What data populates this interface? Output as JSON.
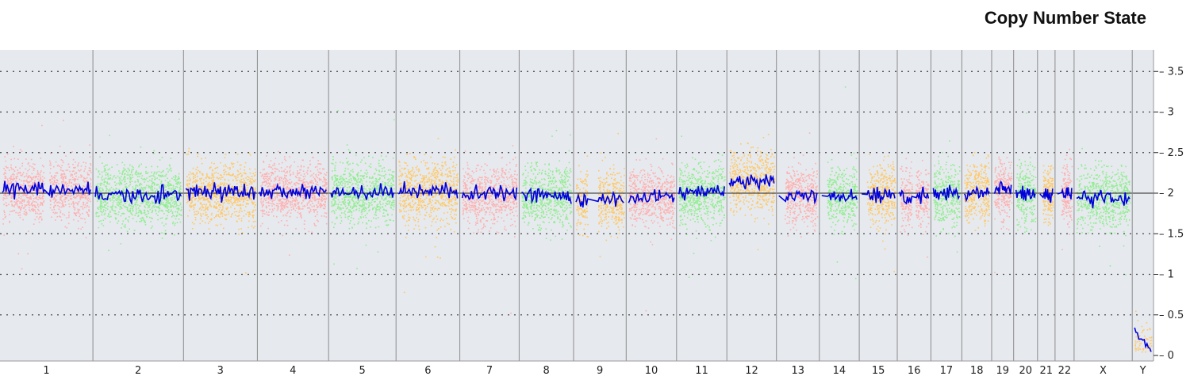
{
  "title": "Copy Number State",
  "chart_data": {
    "type": "scatter",
    "title": "Copy Number State",
    "xlabel": "",
    "ylabel": "",
    "ylim": [
      0,
      3.6
    ],
    "y_ticks": [
      0,
      0.5,
      1,
      1.5,
      2,
      2.5,
      3,
      3.5
    ],
    "y_tick_labels": [
      "0",
      "0.5",
      "1",
      "1.5",
      "2",
      "2.5",
      "3",
      "3.5"
    ],
    "grid": true,
    "reference_line": 2,
    "chromosomes": [
      {
        "label": "1",
        "relative_length": 249,
        "segment_median": 2.04,
        "color": "#ffb0b0",
        "gap": [
          0.47,
          0.53
        ]
      },
      {
        "label": "2",
        "relative_length": 243,
        "segment_median": 1.98,
        "color": "#90ee90"
      },
      {
        "label": "3",
        "relative_length": 198,
        "segment_median": 2.02,
        "color": "#ffc966"
      },
      {
        "label": "4",
        "relative_length": 191,
        "segment_median": 2.02,
        "color": "#ffb0b0"
      },
      {
        "label": "5",
        "relative_length": 181,
        "segment_median": 2.01,
        "color": "#90ee90"
      },
      {
        "label": "6",
        "relative_length": 171,
        "segment_median": 2.02,
        "color": "#ffc966"
      },
      {
        "label": "7",
        "relative_length": 159,
        "segment_median": 1.99,
        "color": "#ffb0b0"
      },
      {
        "label": "8",
        "relative_length": 146,
        "segment_median": 1.97,
        "color": "#90ee90"
      },
      {
        "label": "9",
        "relative_length": 141,
        "segment_median": 1.93,
        "color": "#ffc966",
        "gap": [
          0.24,
          0.46
        ]
      },
      {
        "label": "10",
        "relative_length": 135,
        "segment_median": 1.96,
        "color": "#ffb0b0"
      },
      {
        "label": "11",
        "relative_length": 135,
        "segment_median": 2.01,
        "color": "#90ee90"
      },
      {
        "label": "12",
        "relative_length": 133,
        "segment_median": 2.15,
        "color": "#ffc966"
      },
      {
        "label": "13",
        "relative_length": 115,
        "segment_median": 1.97,
        "color": "#ffb0b0",
        "gap": [
          0.0,
          0.15
        ]
      },
      {
        "label": "14",
        "relative_length": 107,
        "segment_median": 1.97,
        "color": "#90ee90",
        "gap": [
          0.0,
          0.15
        ]
      },
      {
        "label": "15",
        "relative_length": 102,
        "segment_median": 1.99,
        "color": "#ffc966",
        "gap": [
          0.0,
          0.16
        ]
      },
      {
        "label": "16",
        "relative_length": 90,
        "segment_median": 1.96,
        "color": "#ffb0b0",
        "gap": [
          0.42,
          0.55
        ]
      },
      {
        "label": "17",
        "relative_length": 83,
        "segment_median": 2.0,
        "color": "#90ee90"
      },
      {
        "label": "18",
        "relative_length": 80,
        "segment_median": 2.0,
        "color": "#ffc966"
      },
      {
        "label": "19",
        "relative_length": 59,
        "segment_median": 2.04,
        "color": "#ffb0b0"
      },
      {
        "label": "20",
        "relative_length": 64,
        "segment_median": 1.99,
        "color": "#90ee90"
      },
      {
        "label": "21",
        "relative_length": 47,
        "segment_median": 1.99,
        "color": "#ffc966",
        "gap": [
          0.0,
          0.22
        ]
      },
      {
        "label": "22",
        "relative_length": 51,
        "segment_median": 1.99,
        "color": "#ffb0b0",
        "gap": [
          0.0,
          0.25
        ]
      },
      {
        "label": "X",
        "relative_length": 156,
        "segment_median": 1.95,
        "color": "#90ee90"
      },
      {
        "label": "Y",
        "relative_length": 57,
        "segment_median": 0.1,
        "color": "#ffc966"
      }
    ],
    "series": [
      {
        "kind": "points",
        "description": "per-probe copy number values, colored by chromosome"
      },
      {
        "kind": "line",
        "color": "#0000dd",
        "description": "smoothed copy number state"
      }
    ]
  }
}
